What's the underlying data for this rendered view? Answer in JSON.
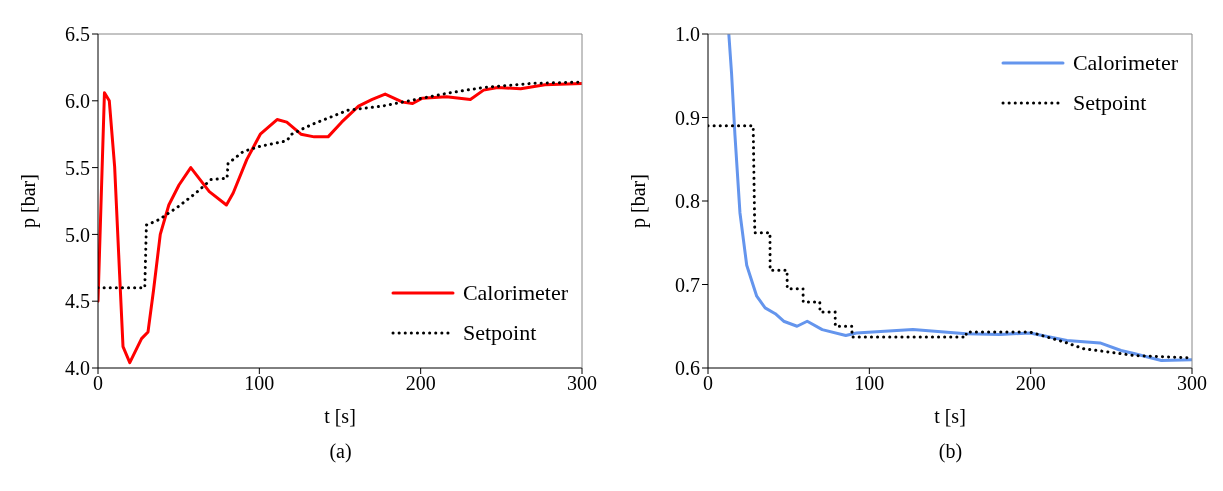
{
  "chart_data": [
    {
      "type": "line",
      "xlabel": "t [s]",
      "ylabel": "p [bar]",
      "annotations": [
        "(a)"
      ],
      "legend": "bottom right",
      "marker": "none",
      "xlim": [
        0,
        300
      ],
      "xticks": [
        0,
        100,
        200,
        300
      ],
      "ylim": [
        4.0,
        6.5
      ],
      "yticks": [
        {
          "value": 4.0,
          "label": "4.0"
        },
        4.5,
        {
          "value": 5.0,
          "label": "5.0"
        },
        5.5,
        {
          "value": 6.0,
          "label": "6.0"
        },
        6.5
      ],
      "series": [
        {
          "name": "Calorimeter",
          "color": "#ff0000",
          "line_style": "solid",
          "x": [
            0,
            4,
            7,
            10.3,
            13.4,
            15.5,
            19.7,
            27,
            31,
            34.4,
            38.6,
            43.9,
            50.2,
            57.5,
            69,
            79.6,
            83.8,
            92.2,
            100.6,
            111,
            117,
            125.8,
            134,
            142.6,
            151,
            161.5,
            170,
            178,
            188.8,
            195,
            201,
            216,
            230.8,
            239,
            247.7,
            262,
            277,
            300
          ],
          "values": [
            4.5,
            6.06,
            6.0,
            5.51,
            4.7,
            4.16,
            4.04,
            4.22,
            4.27,
            4.58,
            5.0,
            5.22,
            5.37,
            5.5,
            5.32,
            5.22,
            5.31,
            5.56,
            5.75,
            5.86,
            5.84,
            5.75,
            5.73,
            5.73,
            5.84,
            5.96,
            6.01,
            6.05,
            5.99,
            5.98,
            6.02,
            6.03,
            6.01,
            6.08,
            6.1,
            6.09,
            6.12,
            6.13
          ]
        },
        {
          "name": "Setpoint",
          "color": "#000000",
          "line_style": "dotted",
          "x": [
            0,
            29,
            30,
            37.8,
            50,
            60.7,
            70,
            80,
            80.6,
            90,
            100.6,
            117,
            120,
            132,
            142.6,
            155,
            176,
            197,
            218,
            239,
            268.6,
            300
          ],
          "values": [
            4.6,
            4.6,
            5.07,
            5.11,
            5.21,
            5.31,
            5.41,
            5.42,
            5.53,
            5.62,
            5.66,
            5.7,
            5.75,
            5.82,
            5.87,
            5.93,
            5.96,
            6.01,
            6.06,
            6.1,
            6.13,
            6.14
          ]
        }
      ]
    },
    {
      "type": "line",
      "xlabel": "t [s]",
      "ylabel": "p [bar]",
      "annotations": [
        "(b)"
      ],
      "legend": "top right",
      "marker": "none",
      "xlim": [
        0,
        300
      ],
      "xticks": [
        0,
        100,
        200,
        300
      ],
      "ylim": [
        0.6,
        1.0
      ],
      "yticks": [
        0.6,
        0.7,
        0.8,
        0.9,
        {
          "value": 1.0,
          "label": "1.0"
        }
      ],
      "series": [
        {
          "name": "Calorimeter",
          "color": "#6495ed",
          "line_style": "solid",
          "x": [
            12.9,
            14.6,
            16.7,
            19.8,
            24,
            30.2,
            35.4,
            41.7,
            46.9,
            55.2,
            61.5,
            70.8,
            85.4,
            92,
            127,
            160,
            181,
            199.6,
            222.5,
            243,
            256,
            264.6,
            281,
            300
          ],
          "values": [
            1.0,
            0.953,
            0.879,
            0.786,
            0.723,
            0.686,
            0.672,
            0.665,
            0.656,
            0.65,
            0.656,
            0.646,
            0.639,
            0.642,
            0.646,
            0.641,
            0.64,
            0.642,
            0.633,
            0.63,
            0.621,
            0.617,
            0.609,
            0.61
          ]
        },
        {
          "name": "Setpoint",
          "color": "#000000",
          "line_style": "dotted",
          "x": [
            0,
            28,
            29,
            38.4,
            38.5,
            49,
            49.1,
            58.9,
            59,
            69.3,
            69.4,
            78.8,
            78.9,
            89.2,
            89.3,
            160,
            160.1,
            199.6,
            221,
            233,
            249,
            264,
            300
          ],
          "values": [
            0.89,
            0.89,
            0.762,
            0.762,
            0.717,
            0.717,
            0.695,
            0.695,
            0.679,
            0.679,
            0.667,
            0.667,
            0.65,
            0.65,
            0.637,
            0.637,
            0.643,
            0.643,
            0.631,
            0.623,
            0.619,
            0.615,
            0.612
          ]
        }
      ]
    }
  ]
}
